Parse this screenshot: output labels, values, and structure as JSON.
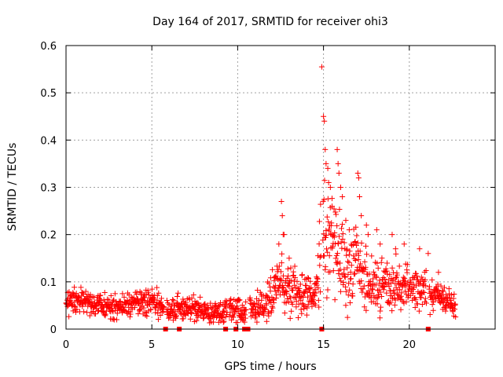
{
  "chart_data": {
    "type": "scatter",
    "title": "Day 164 of 2017, SRMTID for receiver ohi3",
    "xlabel": "GPS time / hours",
    "ylabel": "SRMTID / TECUs",
    "xlim": [
      0,
      25
    ],
    "ylim": [
      0,
      0.6
    ],
    "x_ticks": [
      0,
      5,
      10,
      15,
      20
    ],
    "y_ticks": [
      0,
      0.1,
      0.2,
      0.3,
      0.4,
      0.5,
      0.6
    ],
    "x_tick_labels": [
      "0",
      "5",
      "10",
      "15",
      "20"
    ],
    "y_tick_labels": [
      "0",
      "0.1",
      "0.2",
      "0.3",
      "0.4",
      "0.5",
      "0.6"
    ],
    "grid": true,
    "marker": "plus",
    "color": "#ff0000",
    "data_gap_markers_at_zero": [
      5.8,
      6.6,
      9.3,
      9.9,
      10.4,
      10.6,
      14.9,
      21.1
    ],
    "series": [
      {
        "name": "SRMTID",
        "envelope_x": [
          0,
          0.5,
          1,
          1.5,
          2,
          2.5,
          3,
          3.5,
          4,
          4.5,
          5,
          5.5,
          6,
          6.5,
          7,
          7.5,
          8,
          8.5,
          9,
          9.5,
          10,
          10.5,
          11,
          11.5,
          12,
          12.5,
          13,
          13.5,
          14,
          14.5,
          15,
          15.5,
          16,
          16.5,
          17,
          17.5,
          18,
          18.5,
          19,
          19.5,
          20,
          20.5,
          21,
          21.5,
          22,
          22.7
        ],
        "envelope_mean": [
          0.055,
          0.06,
          0.062,
          0.058,
          0.05,
          0.045,
          0.048,
          0.05,
          0.055,
          0.058,
          0.06,
          0.05,
          0.04,
          0.045,
          0.045,
          0.04,
          0.04,
          0.035,
          0.035,
          0.045,
          0.04,
          0.04,
          0.045,
          0.05,
          0.07,
          0.1,
          0.09,
          0.07,
          0.075,
          0.07,
          0.2,
          0.18,
          0.16,
          0.12,
          0.13,
          0.11,
          0.09,
          0.1,
          0.09,
          0.09,
          0.085,
          0.075,
          0.08,
          0.07,
          0.06,
          0.055
        ],
        "envelope_spread": [
          0.02,
          0.02,
          0.02,
          0.02,
          0.018,
          0.018,
          0.018,
          0.02,
          0.02,
          0.02,
          0.02,
          0.02,
          0.015,
          0.02,
          0.02,
          0.02,
          0.018,
          0.018,
          0.018,
          0.02,
          0.02,
          0.02,
          0.02,
          0.025,
          0.035,
          0.05,
          0.04,
          0.03,
          0.03,
          0.03,
          0.1,
          0.09,
          0.08,
          0.06,
          0.06,
          0.05,
          0.04,
          0.045,
          0.04,
          0.04,
          0.035,
          0.03,
          0.035,
          0.025,
          0.02,
          0.02
        ],
        "gaps": [
          [
            5.7,
            5.85
          ],
          [
            9.4,
            9.5
          ],
          [
            10.5,
            10.7
          ],
          [
            14.85,
            14.95
          ],
          [
            21.0,
            21.15
          ]
        ],
        "peaks": [
          {
            "x": 12.55,
            "y": 0.27
          },
          {
            "x": 12.6,
            "y": 0.24
          },
          {
            "x": 12.65,
            "y": 0.2
          },
          {
            "x": 12.4,
            "y": 0.18
          },
          {
            "x": 12.7,
            "y": 0.2
          },
          {
            "x": 13.0,
            "y": 0.15
          },
          {
            "x": 14.9,
            "y": 0.555
          },
          {
            "x": 15.0,
            "y": 0.45
          },
          {
            "x": 15.05,
            "y": 0.44
          },
          {
            "x": 15.1,
            "y": 0.38
          },
          {
            "x": 15.15,
            "y": 0.35
          },
          {
            "x": 15.25,
            "y": 0.34
          },
          {
            "x": 15.3,
            "y": 0.31
          },
          {
            "x": 15.4,
            "y": 0.3
          },
          {
            "x": 15.5,
            "y": 0.26
          },
          {
            "x": 15.8,
            "y": 0.38
          },
          {
            "x": 15.85,
            "y": 0.35
          },
          {
            "x": 15.9,
            "y": 0.33
          },
          {
            "x": 16.0,
            "y": 0.3
          },
          {
            "x": 16.1,
            "y": 0.28
          },
          {
            "x": 16.3,
            "y": 0.23
          },
          {
            "x": 16.5,
            "y": 0.21
          },
          {
            "x": 17.0,
            "y": 0.33
          },
          {
            "x": 17.05,
            "y": 0.32
          },
          {
            "x": 17.1,
            "y": 0.28
          },
          {
            "x": 17.2,
            "y": 0.24
          },
          {
            "x": 17.5,
            "y": 0.22
          },
          {
            "x": 17.6,
            "y": 0.2
          },
          {
            "x": 18.1,
            "y": 0.21
          },
          {
            "x": 18.3,
            "y": 0.18
          },
          {
            "x": 19.0,
            "y": 0.2
          },
          {
            "x": 19.2,
            "y": 0.17
          },
          {
            "x": 19.7,
            "y": 0.18
          },
          {
            "x": 20.6,
            "y": 0.17
          },
          {
            "x": 21.1,
            "y": 0.16
          },
          {
            "x": 21.7,
            "y": 0.12
          }
        ]
      }
    ]
  }
}
